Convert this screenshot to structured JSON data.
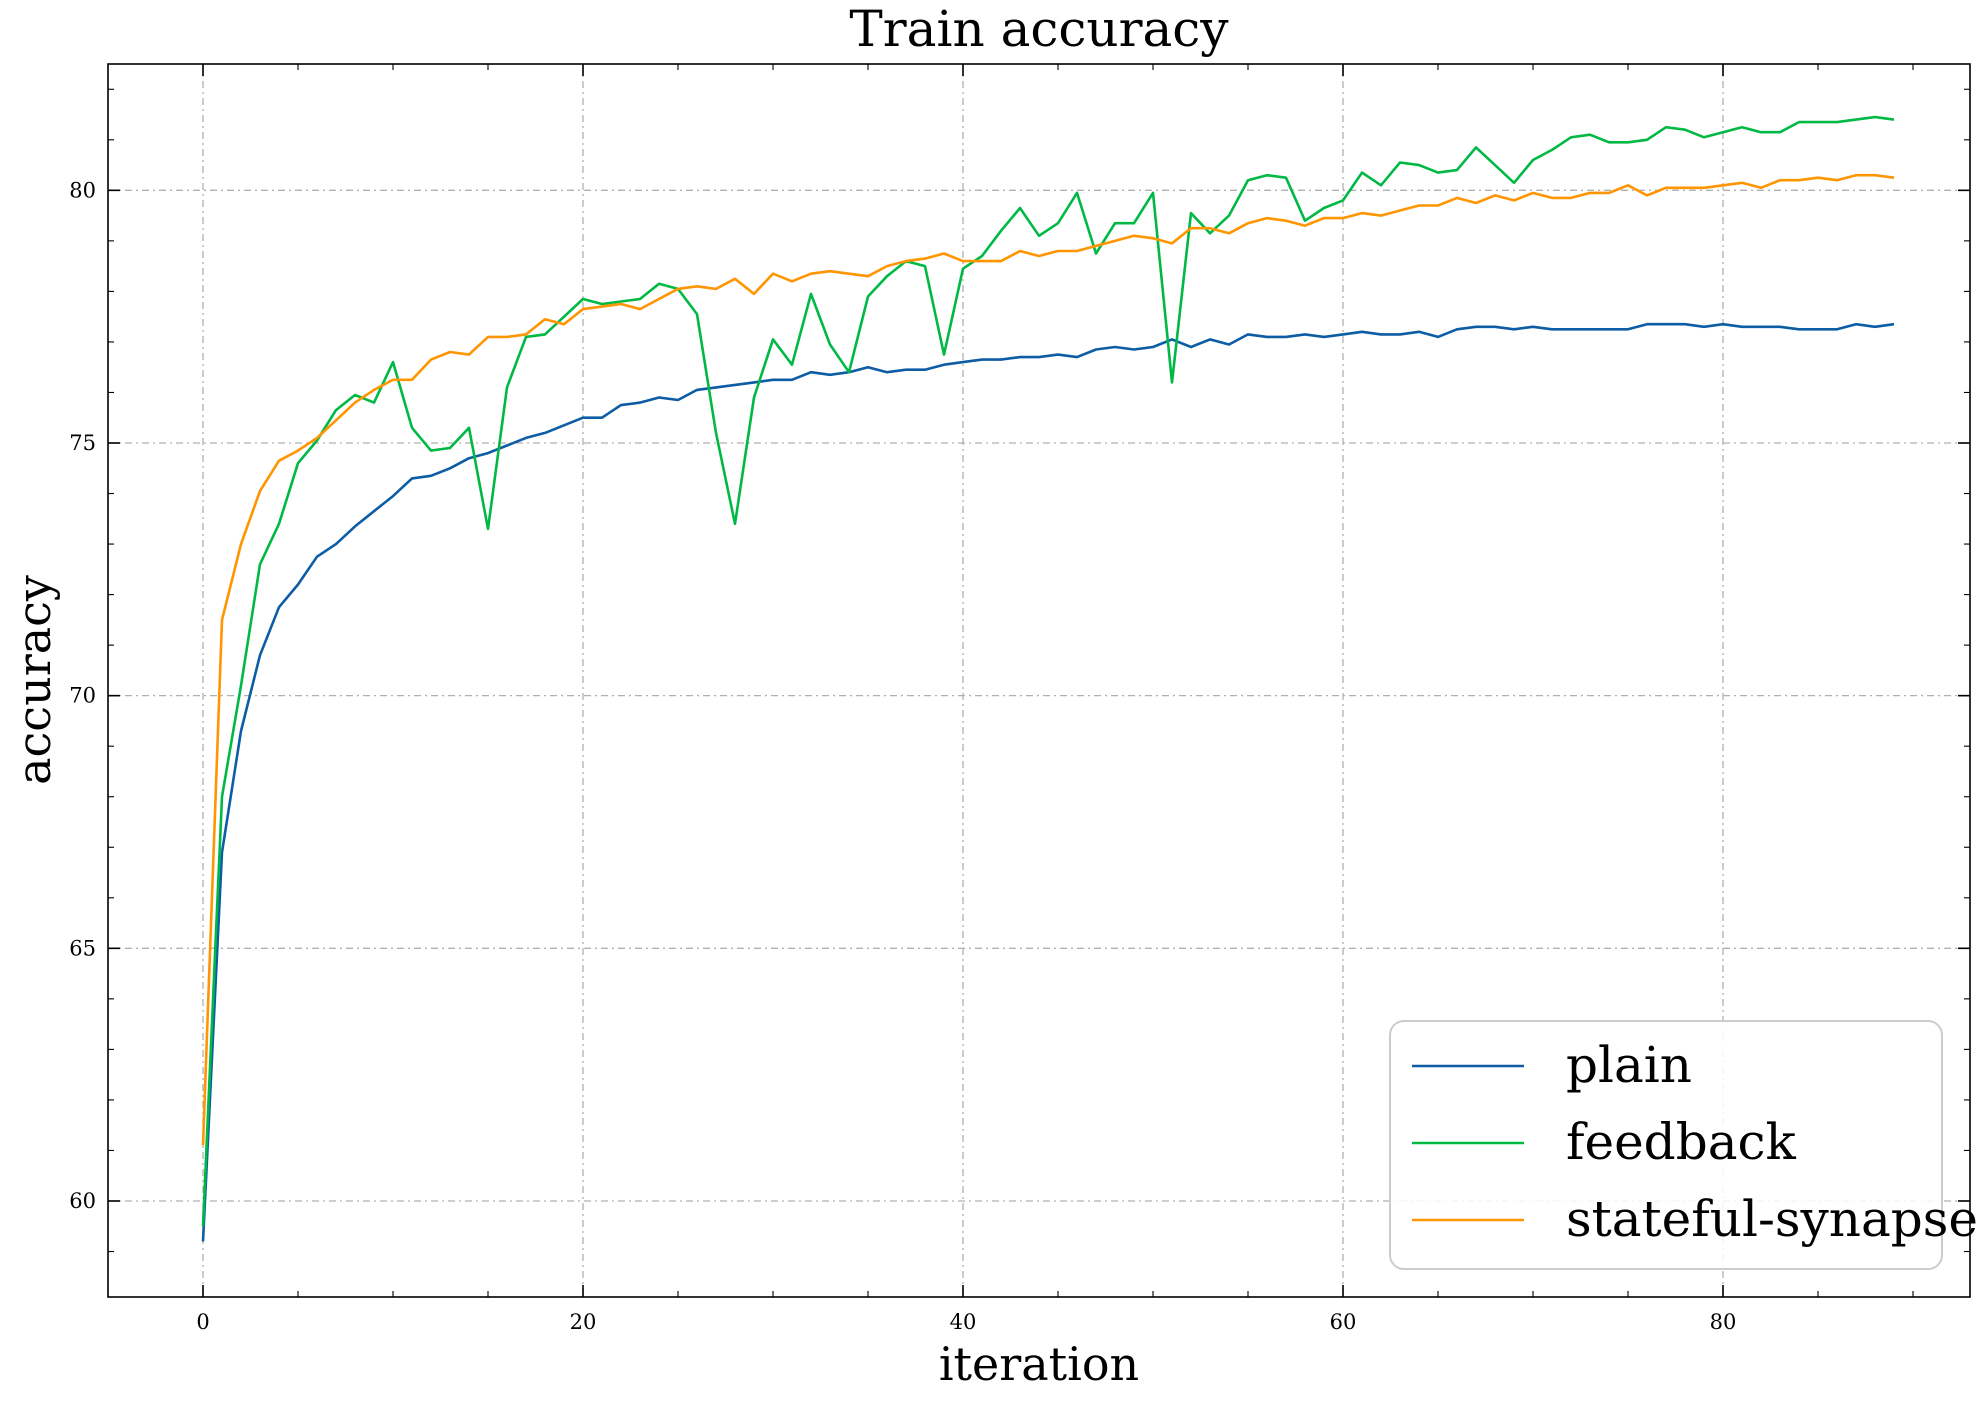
{
  "chart_data": {
    "type": "line",
    "title": "Train accuracy",
    "xlabel": "iteration",
    "ylabel": "accuracy",
    "xlim": [
      -5,
      93
    ],
    "ylim": [
      58.1,
      82.5
    ],
    "x_ticks": [
      0,
      20,
      40,
      60,
      80
    ],
    "y_ticks": [
      60,
      65,
      70,
      75,
      80
    ],
    "x_minor_step": 5,
    "y_minor_step": 1,
    "grid": true,
    "legend_position": "bottom-right",
    "x": [
      0,
      1,
      2,
      3,
      4,
      5,
      6,
      7,
      8,
      9,
      10,
      11,
      12,
      13,
      14,
      15,
      16,
      17,
      18,
      19,
      20,
      21,
      22,
      23,
      24,
      25,
      26,
      27,
      28,
      29,
      30,
      31,
      32,
      33,
      34,
      35,
      36,
      37,
      38,
      39,
      40,
      41,
      42,
      43,
      44,
      45,
      46,
      47,
      48,
      49,
      50,
      51,
      52,
      53,
      54,
      55,
      56,
      57,
      58,
      59,
      60,
      61,
      62,
      63,
      64,
      65,
      66,
      67,
      68,
      69,
      70,
      71,
      72,
      73,
      74,
      75,
      76,
      77,
      78,
      79,
      80,
      81,
      82,
      83,
      84,
      85,
      86,
      87,
      88,
      89
    ],
    "series": [
      {
        "name": "plain",
        "color": "#0C5DA5",
        "values": [
          59.2,
          66.9,
          69.3,
          70.8,
          71.75,
          72.2,
          72.75,
          73.0,
          73.35,
          73.65,
          73.95,
          74.3,
          74.35,
          74.5,
          74.7,
          74.8,
          74.95,
          75.1,
          75.2,
          75.35,
          75.5,
          75.5,
          75.75,
          75.8,
          75.9,
          75.85,
          76.05,
          76.1,
          76.15,
          76.2,
          76.25,
          76.25,
          76.4,
          76.35,
          76.4,
          76.5,
          76.4,
          76.45,
          76.45,
          76.55,
          76.6,
          76.65,
          76.65,
          76.7,
          76.7,
          76.75,
          76.7,
          76.85,
          76.9,
          76.85,
          76.9,
          77.05,
          76.9,
          77.05,
          76.95,
          77.15,
          77.1,
          77.1,
          77.15,
          77.1,
          77.15,
          77.2,
          77.15,
          77.15,
          77.2,
          77.1,
          77.25,
          77.3,
          77.3,
          77.25,
          77.3,
          77.25,
          77.25,
          77.25,
          77.25,
          77.25,
          77.35,
          77.35,
          77.35,
          77.3,
          77.35,
          77.3,
          77.3,
          77.3,
          77.25,
          77.25,
          77.25,
          77.35,
          77.3,
          77.35
        ]
      },
      {
        "name": "feedback",
        "color": "#00B945",
        "values": [
          59.5,
          68.0,
          70.2,
          72.6,
          73.4,
          74.6,
          75.05,
          75.65,
          75.95,
          75.8,
          76.6,
          75.3,
          74.85,
          74.9,
          75.3,
          73.3,
          76.1,
          77.1,
          77.15,
          77.5,
          77.85,
          77.75,
          77.8,
          77.85,
          78.15,
          78.05,
          77.55,
          75.2,
          73.4,
          75.9,
          77.05,
          76.55,
          77.95,
          76.95,
          76.4,
          77.9,
          78.3,
          78.6,
          78.5,
          76.75,
          78.45,
          78.7,
          79.2,
          79.65,
          79.1,
          79.35,
          79.95,
          78.75,
          79.35,
          79.35,
          79.95,
          76.2,
          79.55,
          79.15,
          79.5,
          80.2,
          80.3,
          80.25,
          79.4,
          79.65,
          79.8,
          80.35,
          80.1,
          80.55,
          80.5,
          80.35,
          80.4,
          80.85,
          80.5,
          80.15,
          80.6,
          80.8,
          81.05,
          81.1,
          80.95,
          80.95,
          81.0,
          81.25,
          81.2,
          81.05,
          81.15,
          81.25,
          81.15,
          81.15,
          81.35,
          81.35,
          81.35,
          81.4,
          81.45,
          81.4
        ]
      },
      {
        "name": "stateful-synapse",
        "color": "#FF9500",
        "values": [
          61.1,
          71.5,
          73.0,
          74.05,
          74.65,
          74.85,
          75.1,
          75.45,
          75.8,
          76.05,
          76.25,
          76.25,
          76.65,
          76.8,
          76.75,
          77.1,
          77.1,
          77.15,
          77.45,
          77.35,
          77.65,
          77.7,
          77.75,
          77.65,
          77.85,
          78.05,
          78.1,
          78.05,
          78.25,
          77.95,
          78.35,
          78.2,
          78.35,
          78.4,
          78.35,
          78.3,
          78.5,
          78.6,
          78.65,
          78.75,
          78.6,
          78.6,
          78.6,
          78.8,
          78.7,
          78.8,
          78.8,
          78.9,
          79.0,
          79.1,
          79.05,
          78.95,
          79.25,
          79.25,
          79.15,
          79.35,
          79.45,
          79.4,
          79.3,
          79.45,
          79.45,
          79.55,
          79.5,
          79.6,
          79.7,
          79.7,
          79.85,
          79.75,
          79.9,
          79.8,
          79.95,
          79.85,
          79.85,
          79.95,
          79.95,
          80.1,
          79.9,
          80.05,
          80.05,
          80.05,
          80.1,
          80.15,
          80.05,
          80.2,
          80.2,
          80.25,
          80.2,
          80.3,
          80.3,
          80.25
        ]
      }
    ]
  }
}
